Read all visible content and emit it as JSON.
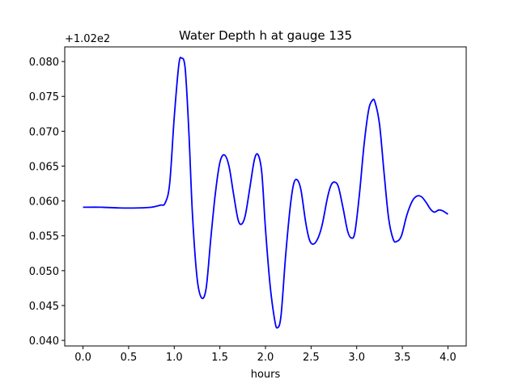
{
  "chart_data": {
    "type": "line",
    "title": "Water Depth h at gauge 135",
    "xlabel": "hours",
    "ylabel": "",
    "offset_label": "+1.02e2",
    "xlim": [
      -0.2,
      4.2
    ],
    "ylim": [
      0.0392,
      0.0821
    ],
    "xticks": [
      0.0,
      0.5,
      1.0,
      1.5,
      2.0,
      2.5,
      3.0,
      3.5,
      4.0
    ],
    "xtick_labels": [
      "0.0",
      "0.5",
      "1.0",
      "1.5",
      "2.0",
      "2.5",
      "3.0",
      "3.5",
      "4.0"
    ],
    "yticks": [
      0.04,
      0.045,
      0.05,
      0.055,
      0.06,
      0.065,
      0.07,
      0.075,
      0.08
    ],
    "ytick_labels": [
      "0.040",
      "0.045",
      "0.050",
      "0.055",
      "0.060",
      "0.065",
      "0.070",
      "0.075",
      "0.080"
    ],
    "grid": false,
    "line_color": "#0000ff",
    "series": [
      {
        "name": "",
        "points": [
          [
            0.0,
            0.0591
          ],
          [
            0.2,
            0.0591
          ],
          [
            0.4,
            0.059
          ],
          [
            0.6,
            0.059
          ],
          [
            0.75,
            0.0591
          ],
          [
            0.85,
            0.0594
          ],
          [
            0.9,
            0.0597
          ],
          [
            0.95,
            0.0625
          ],
          [
            1.0,
            0.072
          ],
          [
            1.05,
            0.0795
          ],
          [
            1.08,
            0.0805
          ],
          [
            1.12,
            0.079
          ],
          [
            1.16,
            0.07
          ],
          [
            1.2,
            0.058
          ],
          [
            1.25,
            0.049
          ],
          [
            1.3,
            0.0461
          ],
          [
            1.35,
            0.0475
          ],
          [
            1.4,
            0.0545
          ],
          [
            1.45,
            0.061
          ],
          [
            1.5,
            0.0655
          ],
          [
            1.55,
            0.0666
          ],
          [
            1.6,
            0.065
          ],
          [
            1.65,
            0.061
          ],
          [
            1.7,
            0.0573
          ],
          [
            1.74,
            0.0567
          ],
          [
            1.78,
            0.058
          ],
          [
            1.83,
            0.062
          ],
          [
            1.88,
            0.066
          ],
          [
            1.92,
            0.0666
          ],
          [
            1.96,
            0.064
          ],
          [
            2.0,
            0.056
          ],
          [
            2.05,
            0.048
          ],
          [
            2.1,
            0.043
          ],
          [
            2.13,
            0.0418
          ],
          [
            2.17,
            0.0435
          ],
          [
            2.22,
            0.052
          ],
          [
            2.27,
            0.059
          ],
          [
            2.31,
            0.0625
          ],
          [
            2.35,
            0.063
          ],
          [
            2.39,
            0.0615
          ],
          [
            2.44,
            0.057
          ],
          [
            2.48,
            0.0545
          ],
          [
            2.52,
            0.0538
          ],
          [
            2.57,
            0.0545
          ],
          [
            2.62,
            0.0565
          ],
          [
            2.68,
            0.0605
          ],
          [
            2.72,
            0.0623
          ],
          [
            2.76,
            0.0627
          ],
          [
            2.8,
            0.062
          ],
          [
            2.85,
            0.059
          ],
          [
            2.9,
            0.0557
          ],
          [
            2.94,
            0.0547
          ],
          [
            2.98,
            0.0555
          ],
          [
            3.03,
            0.061
          ],
          [
            3.08,
            0.068
          ],
          [
            3.13,
            0.073
          ],
          [
            3.17,
            0.0744
          ],
          [
            3.2,
            0.0742
          ],
          [
            3.25,
            0.071
          ],
          [
            3.3,
            0.064
          ],
          [
            3.35,
            0.0575
          ],
          [
            3.4,
            0.0545
          ],
          [
            3.44,
            0.0542
          ],
          [
            3.49,
            0.055
          ],
          [
            3.55,
            0.058
          ],
          [
            3.61,
            0.06
          ],
          [
            3.66,
            0.0607
          ],
          [
            3.71,
            0.0606
          ],
          [
            3.76,
            0.0598
          ],
          [
            3.81,
            0.0588
          ],
          [
            3.85,
            0.0584
          ],
          [
            3.9,
            0.0587
          ],
          [
            3.94,
            0.0586
          ],
          [
            4.0,
            0.0581
          ]
        ]
      }
    ]
  }
}
